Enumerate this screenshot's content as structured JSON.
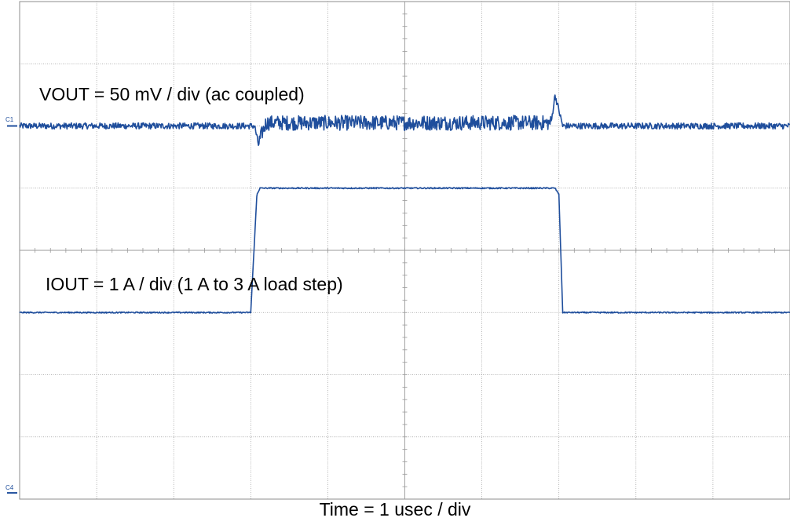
{
  "chart_data": {
    "type": "line",
    "title": "",
    "xlabel": "Time = 1 usec / div",
    "x_divisions": 10,
    "y_divisions": 8,
    "grid": true,
    "colors": {
      "trace": "#1f4e9c",
      "grid": "#9a9a9a",
      "frame": "#8c8c8c"
    },
    "series": [
      {
        "name": "C1",
        "annotation": "VOUT = 50 mV / div (ac coupled)",
        "unit_per_div": "50 mV",
        "baseline_div": 2.0,
        "points": [
          [
            0.0,
            0.0
          ],
          [
            3.05,
            0.0
          ],
          [
            3.1,
            -0.3
          ],
          [
            3.15,
            -0.1
          ],
          [
            3.2,
            0.05
          ],
          [
            6.9,
            0.05
          ],
          [
            6.95,
            0.5
          ],
          [
            7.0,
            0.25
          ],
          [
            7.05,
            0.0
          ],
          [
            10.0,
            0.0
          ]
        ],
        "noise_div": [
          0.1,
          0.24,
          0.1
        ]
      },
      {
        "name": "C4",
        "annotation": "IOUT = 1 A / div (1 A to 3 A load step)",
        "unit_per_div": "1 A",
        "baseline_div": 6.0,
        "points": [
          [
            0.0,
            1.0
          ],
          [
            3.0,
            1.0
          ],
          [
            3.08,
            2.9
          ],
          [
            3.12,
            3.0
          ],
          [
            6.95,
            3.0
          ],
          [
            7.0,
            2.9
          ],
          [
            7.05,
            1.0
          ],
          [
            10.0,
            1.0
          ]
        ],
        "noise_div": 0.02
      }
    ]
  }
}
